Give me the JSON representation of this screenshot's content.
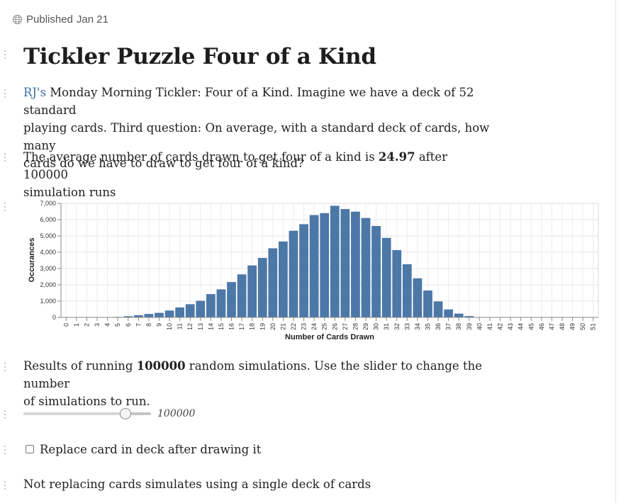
{
  "meta": {
    "published_label": "Published",
    "published_date": "Jan 21"
  },
  "title": "Tickler Puzzle Four of a Kind",
  "intro": {
    "link_text": "RJ's",
    "line1": " Monday Morning Tickler: Four of a Kind. Imagine we have a deck of 52 standard",
    "line2": "playing cards. Third question: On average, with a standard deck of cards, how many",
    "line3": "cards do we have to draw to get four of a kind?"
  },
  "summary": {
    "prefix": "The average number of cards drawn to get four of a kind is ",
    "average": "24.97",
    "suffix": " after 100000",
    "line2": "simulation runs"
  },
  "results": {
    "prefix": "Results of running ",
    "count": "100000",
    "suffix": " random simulations. Use the slider to change the number",
    "line2": "of simulations to run."
  },
  "slider": {
    "value": "100000",
    "fraction": 0.8
  },
  "checkbox": {
    "label": "Replace card in deck after drawing it",
    "checked": false
  },
  "note": "Not replacing cards simulates using a single deck of cards",
  "colors": {
    "bar": "#4c78a8",
    "link": "#3b6fa4"
  },
  "chart_data": {
    "type": "bar",
    "xlabel": "Number of Cards Drawn",
    "ylabel": "Occurances",
    "ylim": [
      0,
      7000
    ],
    "yticks": [
      "0",
      "1,000",
      "2,000",
      "3,000",
      "4,000",
      "5,000",
      "6,000",
      "7,000"
    ],
    "grid": true,
    "categories": [
      "0",
      "1",
      "2",
      "3",
      "4",
      "5",
      "6",
      "7",
      "8",
      "9",
      "10",
      "11",
      "12",
      "13",
      "14",
      "15",
      "16",
      "17",
      "18",
      "19",
      "20",
      "21",
      "22",
      "23",
      "24",
      "25",
      "26",
      "27",
      "28",
      "29",
      "30",
      "31",
      "32",
      "33",
      "34",
      "35",
      "36",
      "37",
      "38",
      "39",
      "40",
      "41",
      "42",
      "43",
      "44",
      "45",
      "46",
      "47",
      "48",
      "49",
      "50",
      "51"
    ],
    "values": [
      0,
      0,
      0,
      0,
      10,
      30,
      70,
      130,
      210,
      280,
      420,
      610,
      810,
      1020,
      1430,
      1720,
      2170,
      2640,
      3190,
      3650,
      4240,
      4660,
      5320,
      5720,
      6280,
      6400,
      6850,
      6650,
      6490,
      6100,
      5610,
      4880,
      4130,
      3260,
      2400,
      1650,
      980,
      490,
      230,
      80,
      10,
      0,
      0,
      0,
      0,
      0,
      0,
      0,
      0,
      0,
      0,
      0
    ]
  }
}
